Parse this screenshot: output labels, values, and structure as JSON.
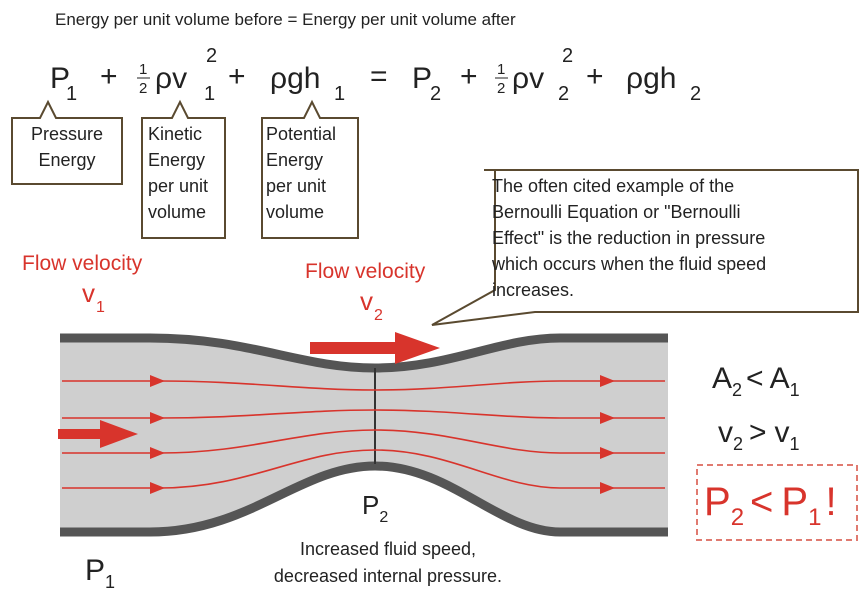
{
  "title": "Energy per unit volume before = Energy per unit volume after",
  "equation": [
    {
      "base": "P",
      "sub": "1"
    },
    {
      "op": "+"
    },
    {
      "frac": [
        "1",
        "2"
      ]
    },
    {
      "base": "ρv",
      "sub": "1",
      "sup": "2"
    },
    {
      "op": "+"
    },
    {
      "base": "ρgh",
      "sub": "1"
    },
    {
      "op": "="
    },
    {
      "base": "P",
      "sub": "2"
    },
    {
      "op": "+"
    },
    {
      "frac": [
        "1",
        "2"
      ]
    },
    {
      "base": "ρv",
      "sub": "2",
      "sup": "2"
    },
    {
      "op": "+"
    },
    {
      "base": "ρgh",
      "sub": "2"
    }
  ],
  "term_labels": [
    {
      "lines": [
        "Pressure",
        "Energy"
      ]
    },
    {
      "lines": [
        "Kinetic",
        "Energy",
        "per unit",
        "volume"
      ]
    },
    {
      "lines": [
        "Potential",
        "Energy",
        "per unit",
        "volume"
      ]
    }
  ],
  "callout": {
    "lines": [
      "The often cited example of the",
      "Bernoulli Equation or \"Bernoulli",
      "Effect\" is the reduction in pressure",
      "which occurs when the fluid speed",
      "increases."
    ]
  },
  "flow1": {
    "label": "Flow velocity",
    "symbol": "v",
    "sub": "1"
  },
  "flow2": {
    "label": "Flow velocity",
    "symbol": "v",
    "sub": "2"
  },
  "relations": [
    {
      "a": "A",
      "a_sub": "2",
      "op": "<",
      "b": "A",
      "b_sub": "1"
    },
    {
      "a": "v",
      "a_sub": "2",
      "op": ">",
      "b": "v",
      "b_sub": "1"
    },
    {
      "a": "P",
      "a_sub": "2",
      "op": "<",
      "b": "P",
      "b_sub": "1",
      "end": "!"
    }
  ],
  "p1": {
    "symbol": "P",
    "sub": "1"
  },
  "p2": {
    "symbol": "P",
    "sub": "2"
  },
  "caption": [
    "Increased fluid speed,",
    "decreased internal pressure."
  ]
}
